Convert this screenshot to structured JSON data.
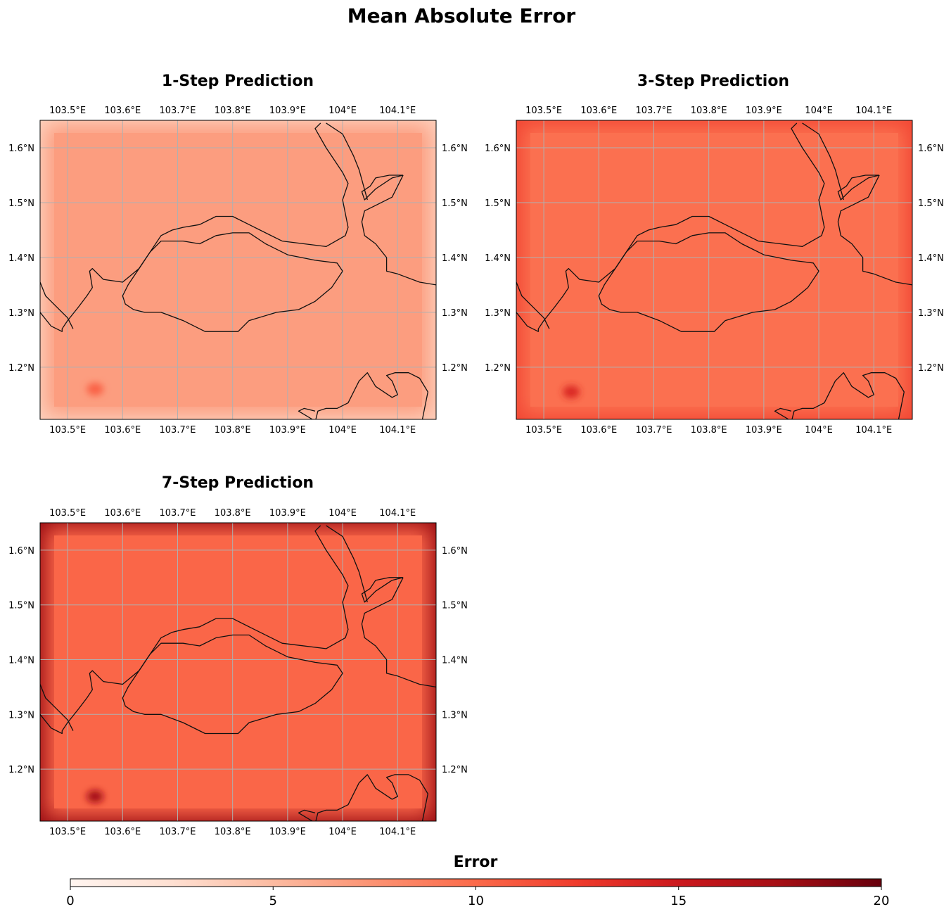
{
  "chart_data": {
    "type": "heatmap",
    "title": "Mean Absolute Error",
    "x_ticks": [
      "103.5°E",
      "103.6°E",
      "103.7°E",
      "103.8°E",
      "103.9°E",
      "104°E",
      "104.1°E"
    ],
    "y_ticks": [
      "1.6°N",
      "1.5°N",
      "1.4°N",
      "1.3°N",
      "1.2°N"
    ],
    "x_tick_values": [
      103.5,
      103.6,
      103.7,
      103.8,
      103.9,
      104.0,
      104.1
    ],
    "y_tick_values": [
      1.6,
      1.5,
      1.4,
      1.3,
      1.2
    ],
    "xlim": [
      103.45,
      104.17
    ],
    "ylim": [
      1.105,
      1.65
    ],
    "grid": true,
    "colormap": "Reds",
    "colorbar": {
      "label": "Error",
      "range": [
        0,
        20
      ],
      "ticks": [
        "0",
        "5",
        "10",
        "15",
        "20"
      ],
      "colors": [
        "#fff5f0",
        "#fee0d2",
        "#fcbba1",
        "#fc9272",
        "#fb6a4a",
        "#ef3b2c",
        "#cb181d",
        "#a50f15",
        "#67000d"
      ]
    },
    "panels": [
      {
        "title": "1-Step Prediction",
        "mean_error": 6.8,
        "hotspot": {
          "lon": 103.55,
          "lat": 1.16,
          "value": 10.5
        },
        "border_error": 3.5
      },
      {
        "title": "3-Step Prediction",
        "mean_error": 9.6,
        "hotspot": {
          "lon": 103.55,
          "lat": 1.155,
          "value": 14
        },
        "border_error": 12
      },
      {
        "title": "7-Step Prediction",
        "mean_error": 10.2,
        "hotspot": {
          "lon": 103.55,
          "lat": 1.15,
          "value": 17.5
        },
        "border_error": 18
      }
    ],
    "coastlines": [
      [
        [
          103.96,
          1.645
        ],
        [
          103.95,
          1.635
        ],
        [
          103.97,
          1.6
        ],
        [
          104.0,
          1.555
        ],
        [
          104.01,
          1.535
        ],
        [
          104.0,
          1.505
        ],
        [
          104.01,
          1.455
        ],
        [
          104.005,
          1.44
        ],
        [
          103.97,
          1.42
        ],
        [
          103.89,
          1.43
        ],
        [
          103.83,
          1.46
        ],
        [
          103.8,
          1.475
        ],
        [
          103.77,
          1.475
        ],
        [
          103.74,
          1.46
        ],
        [
          103.71,
          1.455
        ],
        [
          103.69,
          1.45
        ],
        [
          103.67,
          1.44
        ],
        [
          103.63,
          1.38
        ],
        [
          103.6,
          1.355
        ],
        [
          103.565,
          1.36
        ],
        [
          103.55,
          1.375
        ],
        [
          103.545,
          1.38
        ],
        [
          103.54,
          1.375
        ],
        [
          103.545,
          1.345
        ],
        [
          103.535,
          1.33
        ],
        [
          103.52,
          1.31
        ],
        [
          103.5,
          1.285
        ],
        [
          103.49,
          1.27
        ],
        [
          103.49,
          1.265
        ],
        [
          103.47,
          1.275
        ],
        [
          103.45,
          1.3
        ]
      ],
      [
        [
          103.45,
          1.355
        ],
        [
          103.46,
          1.33
        ],
        [
          103.47,
          1.32
        ],
        [
          103.49,
          1.3
        ],
        [
          103.5,
          1.29
        ],
        [
          103.51,
          1.27
        ]
      ],
      [
        [
          104.0,
          1.375
        ],
        [
          103.98,
          1.345
        ],
        [
          103.95,
          1.32
        ],
        [
          103.92,
          1.305
        ],
        [
          103.88,
          1.3
        ],
        [
          103.83,
          1.285
        ],
        [
          103.81,
          1.265
        ],
        [
          103.79,
          1.265
        ],
        [
          103.75,
          1.265
        ],
        [
          103.71,
          1.285
        ],
        [
          103.67,
          1.3
        ],
        [
          103.64,
          1.3
        ],
        [
          103.62,
          1.305
        ],
        [
          103.605,
          1.315
        ],
        [
          103.6,
          1.33
        ],
        [
          103.61,
          1.35
        ],
        [
          103.63,
          1.38
        ],
        [
          103.65,
          1.41
        ],
        [
          103.67,
          1.43
        ],
        [
          103.69,
          1.43
        ],
        [
          103.71,
          1.43
        ],
        [
          103.74,
          1.425
        ],
        [
          103.77,
          1.44
        ],
        [
          103.8,
          1.445
        ],
        [
          103.83,
          1.445
        ],
        [
          103.86,
          1.425
        ],
        [
          103.9,
          1.405
        ],
        [
          103.95,
          1.395
        ],
        [
          103.99,
          1.39
        ],
        [
          104.0,
          1.375
        ]
      ],
      [
        [
          104.11,
          1.55
        ],
        [
          104.09,
          1.545
        ],
        [
          104.06,
          1.525
        ],
        [
          104.04,
          1.505
        ],
        [
          104.035,
          1.52
        ],
        [
          104.05,
          1.53
        ],
        [
          104.06,
          1.545
        ],
        [
          104.085,
          1.55
        ],
        [
          104.11,
          1.55
        ]
      ],
      [
        [
          104.045,
          1.505
        ],
        [
          104.03,
          1.56
        ],
        [
          104.02,
          1.585
        ],
        [
          104.0,
          1.625
        ],
        [
          103.97,
          1.645
        ]
      ],
      [
        [
          104.17,
          1.35
        ],
        [
          104.14,
          1.355
        ],
        [
          104.1,
          1.37
        ],
        [
          104.08,
          1.375
        ],
        [
          104.08,
          1.4
        ],
        [
          104.06,
          1.425
        ],
        [
          104.04,
          1.44
        ],
        [
          104.035,
          1.465
        ],
        [
          104.04,
          1.485
        ],
        [
          104.06,
          1.495
        ],
        [
          104.09,
          1.51
        ],
        [
          104.11,
          1.55
        ]
      ],
      [
        [
          103.95,
          1.1
        ],
        [
          103.955,
          1.12
        ],
        [
          103.97,
          1.125
        ],
        [
          103.99,
          1.125
        ],
        [
          104.01,
          1.135
        ],
        [
          104.03,
          1.175
        ],
        [
          104.045,
          1.19
        ],
        [
          104.06,
          1.165
        ],
        [
          104.09,
          1.145
        ],
        [
          104.1,
          1.15
        ],
        [
          104.09,
          1.175
        ],
        [
          104.08,
          1.185
        ],
        [
          104.095,
          1.19
        ],
        [
          104.12,
          1.19
        ],
        [
          104.14,
          1.18
        ],
        [
          104.155,
          1.155
        ],
        [
          104.15,
          1.13
        ],
        [
          104.145,
          1.105
        ]
      ],
      [
        [
          103.945,
          1.105
        ],
        [
          103.92,
          1.12
        ],
        [
          103.93,
          1.125
        ],
        [
          103.95,
          1.12
        ]
      ]
    ]
  }
}
